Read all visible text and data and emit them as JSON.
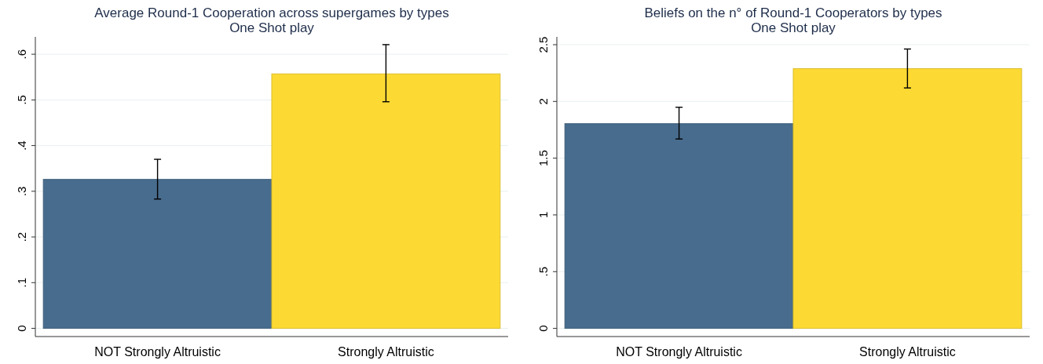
{
  "chart_data": [
    {
      "type": "bar",
      "title": "Average Round-1 Cooperation across supergames by types",
      "subtitle": "One Shot play",
      "categories": [
        "NOT Strongly Altruistic",
        "Strongly Altruistic"
      ],
      "values": [
        0.326,
        0.557
      ],
      "colors": [
        "#486c8d",
        "#fdda33"
      ],
      "errors": [
        [
          0.283,
          0.37
        ],
        [
          0.496,
          0.621
        ]
      ],
      "ylim": [
        -0.018,
        0.638
      ],
      "yticks": [
        0,
        {
          "value": 0.1,
          "label": ".1"
        },
        {
          "value": 0.2,
          "label": ".2"
        },
        {
          "value": 0.3,
          "label": ".3"
        },
        {
          "value": 0.4,
          "label": ".4"
        },
        {
          "value": 0.5,
          "label": ".5"
        },
        {
          "value": 0.6,
          "label": ".6"
        }
      ],
      "grid": "y"
    },
    {
      "type": "bar",
      "title": "Beliefs on the n° of Round-1 Cooperators by types",
      "subtitle": "One Shot play",
      "categories": [
        "NOT Strongly Altruistic",
        "Strongly Altruistic"
      ],
      "values": [
        1.804,
        2.289
      ],
      "colors": [
        "#486c8d",
        "#fdda33"
      ],
      "errors": [
        [
          1.669,
          1.949
        ],
        [
          2.119,
          2.462
        ]
      ],
      "ylim": [
        -0.072,
        2.569
      ],
      "yticks": [
        0,
        {
          "value": 0.5,
          "label": ".5"
        },
        1,
        1.5,
        2,
        2.5
      ],
      "grid": "y"
    }
  ]
}
